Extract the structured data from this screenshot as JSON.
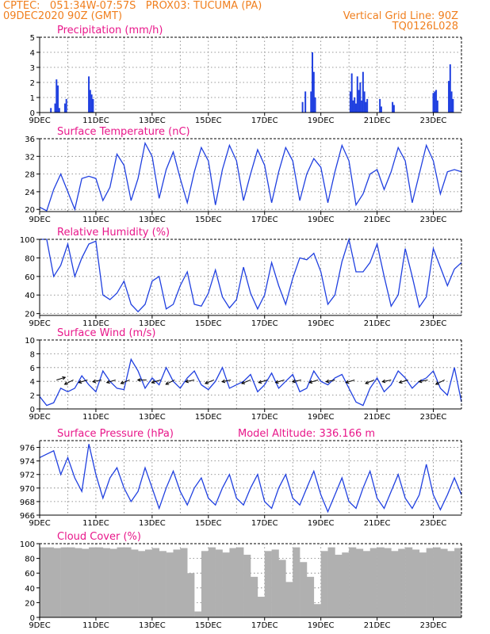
{
  "header": {
    "line1": "CPTEC:   051:34W-07:57S   PROX03: TUCUMA (PA)",
    "line2": "09DEC2020 90Z (GMT)",
    "vgrid": "Vertical Grid Line: 90Z",
    "code": "TQ0126L028"
  },
  "colors": {
    "series": "#2040e0",
    "title": "#e8178a",
    "header": "#f07f1e",
    "cloud": "#b0b0b0"
  },
  "chart_data": [
    {
      "id": "precip",
      "type": "bar",
      "title": "Precipitation (mm/h)",
      "ylim": [
        0,
        5
      ],
      "yticks": [
        0,
        1,
        2,
        3,
        4,
        5
      ],
      "x_ticks": [
        "9DEC",
        "11DEC",
        "13DEC",
        "15DEC",
        "17DEC",
        "19DEC",
        "21DEC",
        "23DEC"
      ],
      "x_days": [
        0,
        2,
        4,
        6,
        8,
        10,
        12,
        14
      ],
      "bars": [
        {
          "day": 0.4,
          "value": 0.3
        },
        {
          "day": 0.55,
          "value": 0.6
        },
        {
          "day": 0.6,
          "value": 2.2
        },
        {
          "day": 0.65,
          "value": 1.8
        },
        {
          "day": 0.7,
          "value": 0.3
        },
        {
          "day": 0.9,
          "value": 0.6
        },
        {
          "day": 0.95,
          "value": 0.9
        },
        {
          "day": 1.75,
          "value": 2.4
        },
        {
          "day": 1.8,
          "value": 1.5
        },
        {
          "day": 1.85,
          "value": 1.2
        },
        {
          "day": 1.9,
          "value": 0.9
        },
        {
          "day": 9.35,
          "value": 0.7
        },
        {
          "day": 9.45,
          "value": 1.4
        },
        {
          "day": 9.65,
          "value": 1.4
        },
        {
          "day": 9.7,
          "value": 4.0
        },
        {
          "day": 9.75,
          "value": 2.7
        },
        {
          "day": 9.8,
          "value": 1.0
        },
        {
          "day": 11.05,
          "value": 1.4
        },
        {
          "day": 11.1,
          "value": 2.6
        },
        {
          "day": 11.15,
          "value": 0.8
        },
        {
          "day": 11.2,
          "value": 1.0
        },
        {
          "day": 11.25,
          "value": 0.6
        },
        {
          "day": 11.3,
          "value": 2.4
        },
        {
          "day": 11.35,
          "value": 1.5
        },
        {
          "day": 11.4,
          "value": 2.0
        },
        {
          "day": 11.45,
          "value": 0.8
        },
        {
          "day": 11.5,
          "value": 2.7
        },
        {
          "day": 11.55,
          "value": 1.4
        },
        {
          "day": 11.6,
          "value": 0.7
        },
        {
          "day": 11.65,
          "value": 0.9
        },
        {
          "day": 12.1,
          "value": 0.9
        },
        {
          "day": 12.15,
          "value": 0.4
        },
        {
          "day": 12.55,
          "value": 0.7
        },
        {
          "day": 12.6,
          "value": 0.5
        },
        {
          "day": 14.0,
          "value": 1.3
        },
        {
          "day": 14.05,
          "value": 1.4
        },
        {
          "day": 14.1,
          "value": 1.5
        },
        {
          "day": 14.15,
          "value": 0.8
        },
        {
          "day": 14.55,
          "value": 2.1
        },
        {
          "day": 14.6,
          "value": 3.2
        },
        {
          "day": 14.65,
          "value": 1.4
        },
        {
          "day": 14.7,
          "value": 0.9
        }
      ]
    },
    {
      "id": "temp",
      "type": "line",
      "title": "Surface Temperature (nC)",
      "ylim": [
        19.5,
        36
      ],
      "yticks": [
        20,
        24,
        28,
        32,
        36
      ],
      "x_ticks": [
        "9DEC",
        "11DEC",
        "13DEC",
        "15DEC",
        "17DEC",
        "19DEC",
        "21DEC",
        "23DEC"
      ],
      "x": [
        0,
        0.25,
        0.5,
        0.75,
        1.0,
        1.25,
        1.5,
        1.75,
        2.0,
        2.25,
        2.5,
        2.75,
        3.0,
        3.25,
        3.5,
        3.75,
        4.0,
        4.25,
        4.5,
        4.75,
        5.0,
        5.25,
        5.5,
        5.75,
        6.0,
        6.25,
        6.5,
        6.75,
        7.0,
        7.25,
        7.5,
        7.75,
        8.0,
        8.25,
        8.5,
        8.75,
        9.0,
        9.25,
        9.5,
        9.75,
        10.0,
        10.25,
        10.5,
        10.75,
        11.0,
        11.25,
        11.5,
        11.75,
        12.0,
        12.25,
        12.5,
        12.75,
        13.0,
        13.25,
        13.5,
        13.75,
        14.0,
        14.25,
        14.5,
        14.75,
        15.0
      ],
      "values": [
        20.5,
        19.7,
        24.5,
        28.0,
        24.0,
        20.0,
        27.0,
        27.5,
        27.0,
        22.0,
        25.0,
        32.5,
        30.0,
        22.0,
        27.0,
        35.0,
        32.0,
        22.5,
        29.0,
        33.0,
        27.0,
        21.5,
        28.5,
        34.0,
        31.0,
        21.0,
        29.0,
        34.5,
        31.0,
        22.0,
        28.0,
        33.5,
        30.0,
        21.5,
        28.5,
        34.0,
        31.0,
        22.0,
        28.0,
        31.5,
        29.5,
        21.5,
        28.5,
        34.5,
        31.0,
        21.0,
        23.5,
        28.0,
        29.0,
        24.5,
        28.5,
        34.0,
        31.0,
        21.5,
        28.0,
        34.5,
        31.0,
        23.5,
        28.5,
        29.0,
        28.5
      ]
    },
    {
      "id": "rh",
      "type": "line",
      "title": "Relative Humidity (%)",
      "ylim": [
        18,
        100
      ],
      "yticks": [
        20,
        40,
        60,
        80,
        100
      ],
      "x_ticks": [
        "9DEC",
        "11DEC",
        "13DEC",
        "15DEC",
        "17DEC",
        "19DEC",
        "21DEC",
        "23DEC"
      ],
      "x": [
        0,
        0.25,
        0.5,
        0.75,
        1.0,
        1.25,
        1.5,
        1.75,
        2.0,
        2.25,
        2.5,
        2.75,
        3.0,
        3.25,
        3.5,
        3.75,
        4.0,
        4.25,
        4.5,
        4.75,
        5.0,
        5.25,
        5.5,
        5.75,
        6.0,
        6.25,
        6.5,
        6.75,
        7.0,
        7.25,
        7.5,
        7.75,
        8.0,
        8.25,
        8.5,
        8.75,
        9.0,
        9.25,
        9.5,
        9.75,
        10.0,
        10.25,
        10.5,
        10.75,
        11.0,
        11.25,
        11.5,
        11.75,
        12.0,
        12.25,
        12.5,
        12.75,
        13.0,
        13.25,
        13.5,
        13.75,
        14.0,
        14.25,
        14.5,
        14.75,
        15.0
      ],
      "values": [
        100,
        100,
        60,
        72,
        95,
        60,
        80,
        95,
        98,
        40,
        35,
        42,
        55,
        30,
        22,
        30,
        55,
        60,
        25,
        30,
        50,
        65,
        30,
        28,
        42,
        67,
        38,
        26,
        35,
        70,
        42,
        25,
        40,
        75,
        50,
        30,
        58,
        80,
        78,
        85,
        65,
        30,
        40,
        76,
        100,
        65,
        65,
        75,
        95,
        60,
        28,
        40,
        90,
        60,
        27,
        38,
        90,
        70,
        50,
        68,
        75
      ]
    },
    {
      "id": "wind",
      "type": "line",
      "title": "Surface Wind (m/s)",
      "ylim": [
        0,
        10
      ],
      "yticks": [
        0,
        2,
        4,
        6,
        8,
        10
      ],
      "x_ticks": [
        "9DEC",
        "11DEC",
        "13DEC",
        "15DEC",
        "17DEC",
        "19DEC",
        "21DEC",
        "23DEC"
      ],
      "x": [
        0,
        0.25,
        0.5,
        0.75,
        1.0,
        1.25,
        1.5,
        1.75,
        2.0,
        2.25,
        2.5,
        2.75,
        3.0,
        3.25,
        3.5,
        3.75,
        4.0,
        4.25,
        4.5,
        4.75,
        5.0,
        5.25,
        5.5,
        5.75,
        6.0,
        6.25,
        6.5,
        6.75,
        7.0,
        7.25,
        7.5,
        7.75,
        8.0,
        8.25,
        8.5,
        8.75,
        9.0,
        9.25,
        9.5,
        9.75,
        10.0,
        10.25,
        10.5,
        10.75,
        11.0,
        11.25,
        11.5,
        11.75,
        12.0,
        12.25,
        12.5,
        12.75,
        13.0,
        13.25,
        13.5,
        13.75,
        14.0,
        14.25,
        14.5,
        14.75,
        15.0
      ],
      "values": [
        1.8,
        0.5,
        0.9,
        3.0,
        2.5,
        3.0,
        4.8,
        3.5,
        2.5,
        5.5,
        4.0,
        3.0,
        2.8,
        7.2,
        5.5,
        3.0,
        4.5,
        3.5,
        6.0,
        4.0,
        3.0,
        4.5,
        5.5,
        3.5,
        2.8,
        4.0,
        6.0,
        3.0,
        3.5,
        4.0,
        5.0,
        2.5,
        3.5,
        5.2,
        3.0,
        4.0,
        5.0,
        2.5,
        3.0,
        5.5,
        4.0,
        3.5,
        4.5,
        5.0,
        3.0,
        1.0,
        0.5,
        3.0,
        4.5,
        2.5,
        3.5,
        5.5,
        4.5,
        3.0,
        4.0,
        4.5,
        5.5,
        3.0,
        2.0,
        6.0,
        1.0
      ],
      "arrows": [
        {
          "day": 0.6,
          "dx": 1,
          "dy": -0.3
        },
        {
          "day": 1.2,
          "dx": -1,
          "dy": 0.5
        },
        {
          "day": 1.7,
          "dx": -1,
          "dy": 0.3
        },
        {
          "day": 2.2,
          "dx": -1,
          "dy": 0.2
        },
        {
          "day": 2.7,
          "dx": -1,
          "dy": 0.3
        },
        {
          "day": 3.2,
          "dx": -1,
          "dy": 0.4
        },
        {
          "day": 3.8,
          "dx": -1,
          "dy": 0.0
        },
        {
          "day": 4.3,
          "dx": -1,
          "dy": 0.3
        },
        {
          "day": 4.8,
          "dx": -1,
          "dy": 0.5
        },
        {
          "day": 5.5,
          "dx": -1,
          "dy": 0.2
        },
        {
          "day": 6.2,
          "dx": -1,
          "dy": 0.4
        },
        {
          "day": 6.8,
          "dx": -1,
          "dy": 0.2
        },
        {
          "day": 7.5,
          "dx": -1,
          "dy": 0.4
        },
        {
          "day": 8.1,
          "dx": -1,
          "dy": 0.3
        },
        {
          "day": 8.7,
          "dx": -1,
          "dy": 0.3
        },
        {
          "day": 9.3,
          "dx": -1,
          "dy": 0.2
        },
        {
          "day": 9.9,
          "dx": -1,
          "dy": 0.3
        },
        {
          "day": 10.5,
          "dx": -1,
          "dy": 0.2
        },
        {
          "day": 11.2,
          "dx": -1,
          "dy": 0.3
        },
        {
          "day": 11.9,
          "dx": -1,
          "dy": 0.4
        },
        {
          "day": 12.5,
          "dx": -1,
          "dy": 0.2
        },
        {
          "day": 13.1,
          "dx": -1,
          "dy": 0.3
        },
        {
          "day": 13.8,
          "dx": -1,
          "dy": 0.2
        },
        {
          "day": 14.4,
          "dx": -1,
          "dy": 0.5
        }
      ]
    },
    {
      "id": "pres",
      "type": "line",
      "title": "Surface Pressure (hPa)",
      "annotation": "Model Altitude: 336.166 m",
      "ylim": [
        966,
        977
      ],
      "yticks": [
        966,
        968,
        970,
        972,
        974,
        976
      ],
      "x_ticks": [
        "9DEC",
        "11DEC",
        "13DEC",
        "15DEC",
        "17DEC",
        "19DEC",
        "21DEC",
        "23DEC"
      ],
      "x": [
        0,
        0.25,
        0.5,
        0.75,
        1.0,
        1.25,
        1.5,
        1.75,
        2.0,
        2.25,
        2.5,
        2.75,
        3.0,
        3.25,
        3.5,
        3.75,
        4.0,
        4.25,
        4.5,
        4.75,
        5.0,
        5.25,
        5.5,
        5.75,
        6.0,
        6.25,
        6.5,
        6.75,
        7.0,
        7.25,
        7.5,
        7.75,
        8.0,
        8.25,
        8.5,
        8.75,
        9.0,
        9.25,
        9.5,
        9.75,
        10.0,
        10.25,
        10.5,
        10.75,
        11.0,
        11.25,
        11.5,
        11.75,
        12.0,
        12.25,
        12.5,
        12.75,
        13.0,
        13.25,
        13.5,
        13.75,
        14.0,
        14.25,
        14.5,
        14.75,
        15.0
      ],
      "values": [
        974.5,
        975.0,
        975.5,
        972.0,
        974.5,
        971.5,
        969.5,
        976.5,
        972.0,
        968.5,
        971.5,
        973.0,
        970.0,
        968.0,
        969.5,
        973.0,
        970.0,
        967.0,
        970.0,
        972.5,
        969.5,
        967.5,
        970.0,
        971.5,
        968.5,
        967.5,
        970.0,
        972.0,
        968.5,
        967.5,
        970.0,
        972.0,
        968.0,
        967.0,
        970.0,
        972.0,
        968.5,
        967.5,
        970.0,
        972.5,
        969.0,
        966.5,
        969.0,
        971.5,
        968.0,
        967.0,
        970.0,
        972.5,
        968.5,
        967.0,
        969.5,
        972.0,
        968.5,
        967.0,
        969.0,
        973.5,
        969.0,
        966.8,
        969.0,
        971.5,
        969.0
      ]
    },
    {
      "id": "cloud",
      "type": "bar",
      "title": "Cloud Cover (%)",
      "ylim": [
        0,
        100
      ],
      "yticks": [
        0,
        20,
        40,
        60,
        80,
        100
      ],
      "x_ticks": [
        "9DEC",
        "11DEC",
        "13DEC",
        "15DEC",
        "17DEC",
        "19DEC",
        "21DEC",
        "23DEC"
      ],
      "x": [
        0,
        0.25,
        0.5,
        0.75,
        1.0,
        1.25,
        1.5,
        1.75,
        2.0,
        2.25,
        2.5,
        2.75,
        3.0,
        3.25,
        3.5,
        3.75,
        4.0,
        4.25,
        4.5,
        4.75,
        5.0,
        5.25,
        5.5,
        5.75,
        6.0,
        6.25,
        6.5,
        6.75,
        7.0,
        7.25,
        7.5,
        7.75,
        8.0,
        8.25,
        8.5,
        8.75,
        9.0,
        9.25,
        9.5,
        9.75,
        10.0,
        10.25,
        10.5,
        10.75,
        11.0,
        11.25,
        11.5,
        11.75,
        12.0,
        12.25,
        12.5,
        12.75,
        13.0,
        13.25,
        13.5,
        13.75,
        14.0,
        14.25,
        14.5,
        14.75
      ],
      "values": [
        95,
        95,
        94,
        95,
        95,
        94,
        93,
        95,
        95,
        94,
        93,
        95,
        95,
        92,
        90,
        92,
        94,
        90,
        88,
        92,
        94,
        60,
        8,
        90,
        95,
        92,
        88,
        94,
        95,
        85,
        55,
        28,
        90,
        92,
        78,
        48,
        95,
        75,
        55,
        18,
        90,
        95,
        85,
        88,
        95,
        93,
        90,
        94,
        95,
        94,
        90,
        93,
        95,
        92,
        88,
        94,
        95,
        93,
        90,
        94
      ]
    }
  ]
}
